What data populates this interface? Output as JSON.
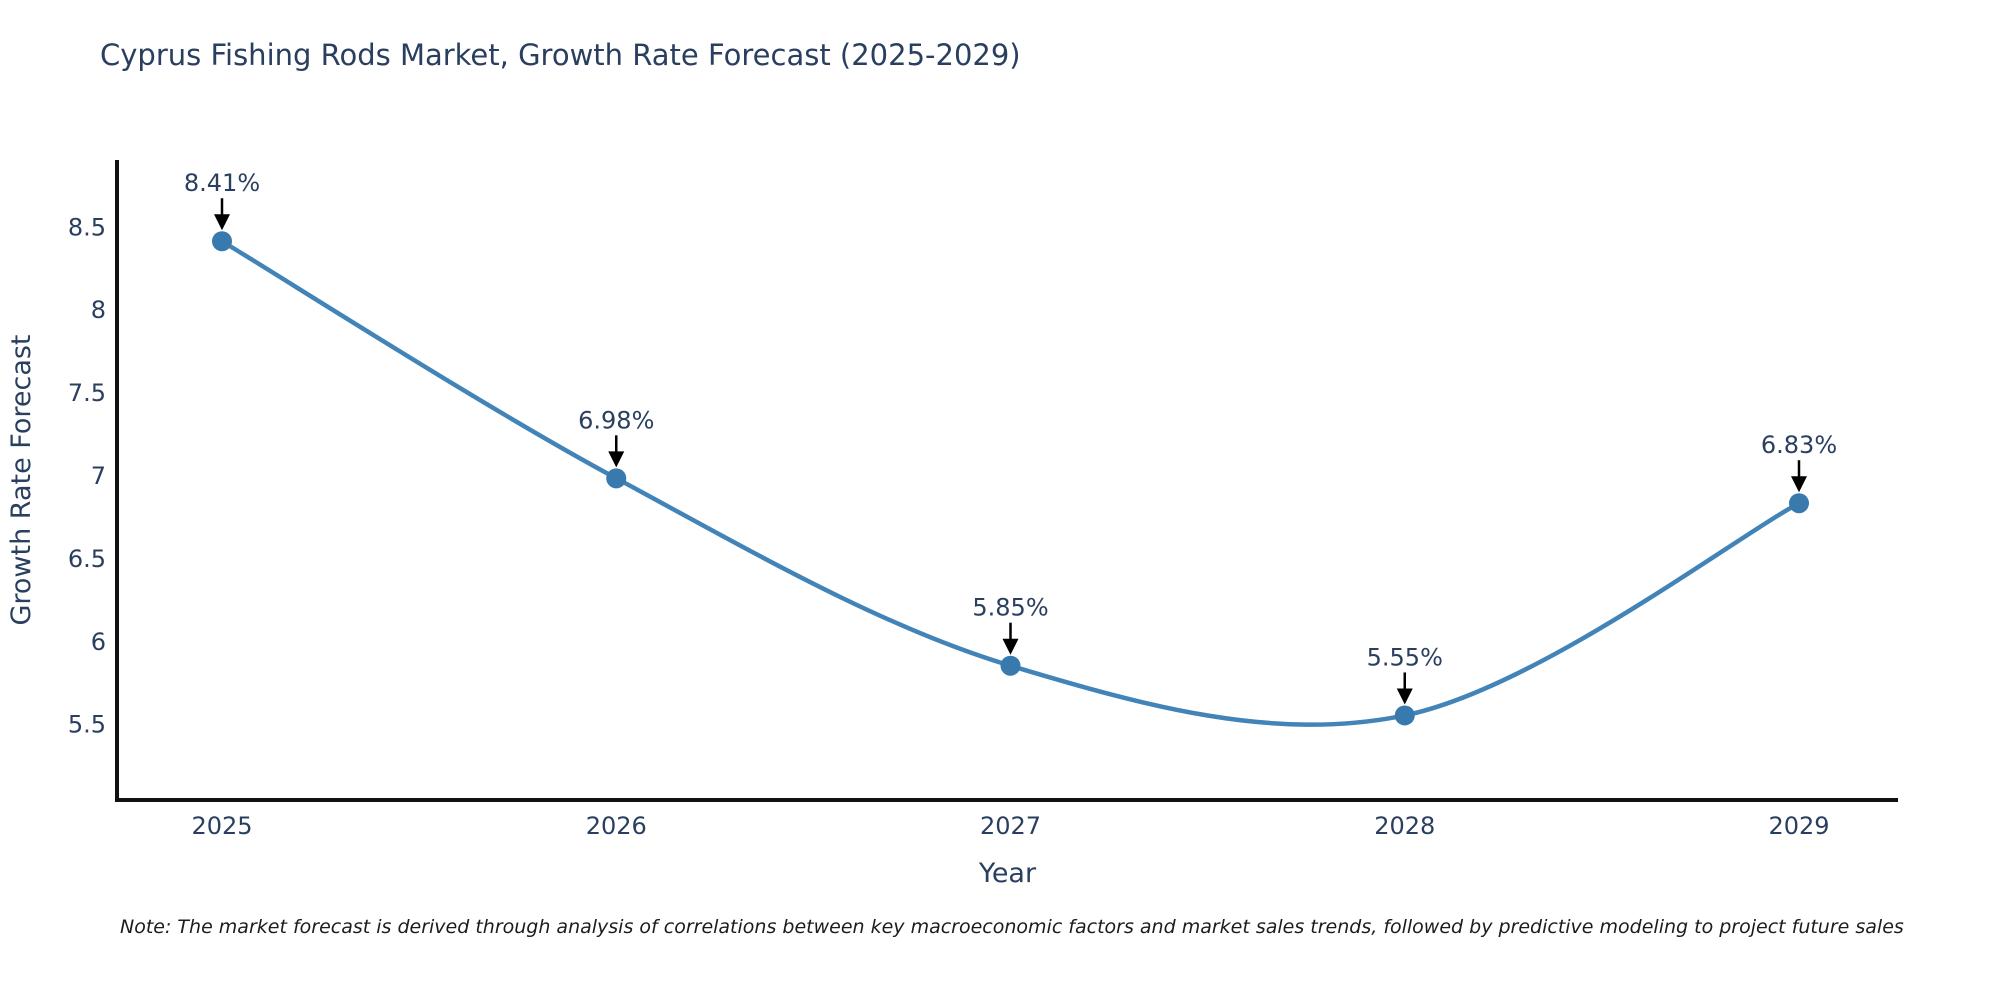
{
  "page": {
    "background": "#ffffff"
  },
  "chart": {
    "note": "Note: The market forecast is derived through analysis of correlations between key macroeconomic factors and market sales trends, followed by predictive modeling to project future sales"
  },
  "chart_data": {
    "type": "line",
    "title": "Cyprus Fishing Rods Market, Growth Rate Forecast (2025-2029)",
    "x": [
      2025,
      2026,
      2027,
      2028,
      2029
    ],
    "xtick_labels": [
      "2025",
      "2026",
      "2027",
      "2028",
      "2029"
    ],
    "values": [
      8.41,
      6.98,
      5.85,
      5.55,
      6.83
    ],
    "point_labels": [
      "8.41%",
      "6.98%",
      "5.85%",
      "5.55%",
      "6.83%"
    ],
    "xlabel": "Year",
    "ylabel": "Growth Rate Forecast",
    "ylim": [
      5.04,
      8.9
    ],
    "yticks": [
      5.5,
      6,
      6.5,
      7,
      7.5,
      8,
      8.5
    ],
    "ytick_labels": [
      "5.5",
      "6",
      "6.5",
      "7",
      "7.5",
      "8",
      "8.5"
    ],
    "grid": false,
    "legend_position": "none",
    "curve": "spline",
    "colors": {
      "line": "#4284b8",
      "marker": "#3879ae",
      "axis": "#111111",
      "text": "#2a3f5f",
      "annotation_arrow": "#000000"
    }
  }
}
